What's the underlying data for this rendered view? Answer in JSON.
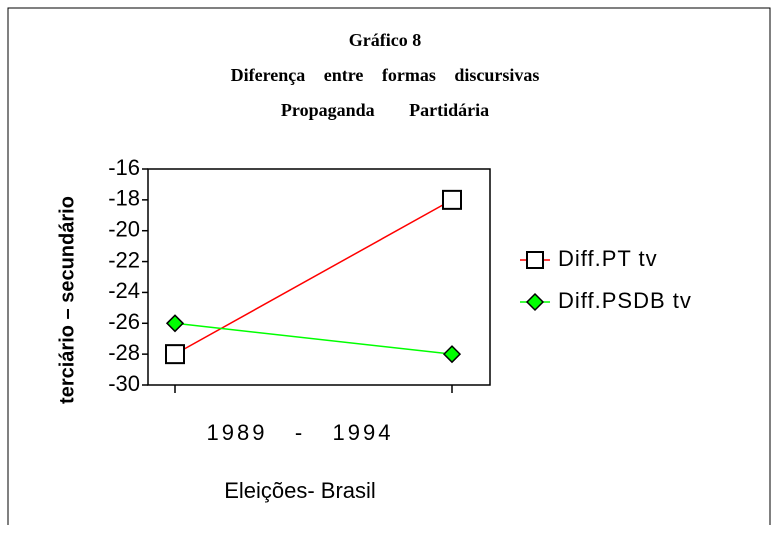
{
  "chart_data": {
    "type": "line",
    "title": [
      "Gráfico 8",
      "Diferença entre formas discursivas",
      "Propaganda Partidária"
    ],
    "categories": [
      null,
      null
    ],
    "xtick_text": "1989   -   1994",
    "xlabel": "Eleições- Brasil",
    "ylabel": "terciário – secundário",
    "ylim": [
      -30,
      -16
    ],
    "yticks": [
      -30,
      -28,
      -26,
      -24,
      -22,
      -20,
      -18,
      -16
    ],
    "grid": false,
    "legend": "right",
    "series": [
      {
        "name": "Diff.PT tv",
        "color": "#ff0000",
        "marker": "square",
        "marker_fill": "#ffffff",
        "values": [
          -28,
          -18
        ]
      },
      {
        "name": "Diff.PSDB tv",
        "color": "#00ff00",
        "marker": "diamond",
        "marker_fill": "#00ff00",
        "values": [
          -26,
          -28
        ]
      }
    ]
  }
}
